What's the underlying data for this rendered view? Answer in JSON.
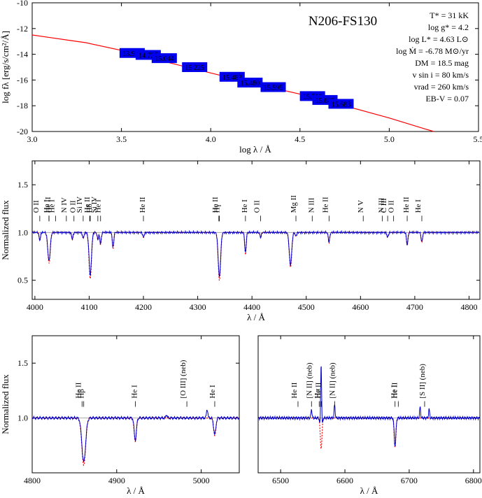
{
  "chart_data": [
    {
      "type": "scatter",
      "panel": "sed",
      "title": "N206-FS130",
      "xlabel": "log λ / Å",
      "ylabel": "log fλ [erg/s/cm²/Å]",
      "xlim": [
        3.0,
        5.5
      ],
      "ylim": [
        -20,
        -10
      ],
      "xticks": [
        "3.0",
        "3.5",
        "4.0",
        "4.5",
        "5.0",
        "5.5"
      ],
      "yticks": [
        "-20",
        "-18",
        "-16",
        "-14",
        "-12",
        "-10"
      ],
      "model_color": "#ff0000",
      "box_color": "#0000ee",
      "model_points": [
        [
          3.0,
          -12.5
        ],
        [
          3.1,
          -12.7
        ],
        [
          3.2,
          -12.9
        ],
        [
          3.3,
          -13.1
        ],
        [
          3.5,
          -13.7
        ],
        [
          3.75,
          -14.6
        ],
        [
          4.0,
          -15.45
        ],
        [
          4.25,
          -16.3
        ],
        [
          4.5,
          -17.1
        ],
        [
          4.75,
          -18.0
        ],
        [
          5.0,
          -18.95
        ],
        [
          5.2,
          -19.8
        ],
        [
          5.25,
          -20.0
        ]
      ],
      "photometry": [
        {
          "label": "13.920",
          "logl": 3.56,
          "logf": -13.9
        },
        {
          "label": "14.727",
          "logl": 3.65,
          "logf": -14.05
        },
        {
          "label": "15.044",
          "logl": 3.74,
          "logf": -14.3
        },
        {
          "label": "15.225",
          "logl": 3.91,
          "logf": -15.0
        },
        {
          "label": "15.483",
          "logl": 4.12,
          "logf": -15.75
        },
        {
          "label": "15.480",
          "logl": 4.22,
          "logf": -16.2
        },
        {
          "label": "15.595",
          "logl": 4.35,
          "logf": -16.55
        },
        {
          "label": "15.710",
          "logl": 4.57,
          "logf": -17.25
        },
        {
          "label": "15.682",
          "logl": 4.64,
          "logf": -17.55
        },
        {
          "label": "15.683",
          "logl": 4.73,
          "logf": -17.85
        }
      ],
      "parameters": [
        "T* = 31 kK",
        "log g* = 4.2",
        "log L* = 4.63 L⊙",
        "log Ṁ = -6.78 M⊙/yr",
        "DM = 18.5 mag",
        "v sin i = 80 km/s",
        "vrad = 260 km/s",
        "EB-V = 0.07"
      ]
    },
    {
      "type": "line",
      "panel": "blue",
      "xlabel": "λ / Å",
      "ylabel": "Normalized flux",
      "xlim": [
        3995,
        4820
      ],
      "ylim": [
        0.3,
        1.75
      ],
      "xticks": [
        "4000",
        "4100",
        "4200",
        "4300",
        "4400",
        "4500",
        "4600",
        "4700",
        "4800"
      ],
      "yticks": [
        "0.5",
        "1.0",
        "1.5"
      ],
      "observed_color": "#0000cc",
      "model_color": "#ff0000",
      "absorption": [
        [
          4009,
          0.92
        ],
        [
          4026,
          0.7
        ],
        [
          4069,
          0.93
        ],
        [
          4089,
          0.94
        ],
        [
          4102,
          0.55
        ],
        [
          4116,
          0.93
        ],
        [
          4121,
          0.88
        ],
        [
          4144,
          0.84
        ],
        [
          4200,
          0.95
        ],
        [
          4340,
          0.53
        ],
        [
          4388,
          0.78
        ],
        [
          4416,
          0.95
        ],
        [
          4471,
          0.66
        ],
        [
          4481,
          0.96
        ],
        [
          4542,
          0.9
        ],
        [
          4650,
          0.95
        ],
        [
          4686,
          0.87
        ],
        [
          4713,
          0.9
        ]
      ],
      "line_ids": [
        {
          "text": "O II",
          "at": 4009
        },
        {
          "text": "He I",
          "at": 4026
        },
        {
          "text": "He II",
          "at": 4026
        },
        {
          "text": "He I",
          "at": 4038
        },
        {
          "text": "N IV",
          "at": 4058
        },
        {
          "text": "O II",
          "at": 4072
        },
        {
          "text": "Si IV",
          "at": 4089
        },
        {
          "text": "He II",
          "at": 4101
        },
        {
          "text": "Hδ",
          "at": 4102
        },
        {
          "text": "Si IV",
          "at": 4116
        },
        {
          "text": "He I",
          "at": 4121
        },
        {
          "text": "He II",
          "at": 4200
        },
        {
          "text": "He II",
          "at": 4339
        },
        {
          "text": "Hγ",
          "at": 4340
        },
        {
          "text": "He I",
          "at": 4388
        },
        {
          "text": "O II",
          "at": 4416
        },
        {
          "text": "Mg II",
          "at": 4481
        },
        {
          "text": "N III",
          "at": 4511
        },
        {
          "text": "He II",
          "at": 4542
        },
        {
          "text": "N V",
          "at": 4605
        },
        {
          "text": "N III",
          "at": 4640
        },
        {
          "text": "C III",
          "at": 4650
        },
        {
          "text": "O II",
          "at": 4661
        },
        {
          "text": "He II",
          "at": 4686
        },
        {
          "text": "He I",
          "at": 4713
        }
      ]
    },
    {
      "type": "line",
      "panel": "hbeta",
      "xlabel": "λ / Å",
      "ylabel": "Normalized flux",
      "xlim": [
        4800,
        5045
      ],
      "ylim": [
        0.5,
        1.75
      ],
      "xticks": [
        "4800",
        "4900",
        "5000"
      ],
      "yticks": [
        "1.0",
        "1.5"
      ],
      "absorption": [
        [
          4861,
          0.6
        ],
        [
          4922,
          0.8
        ],
        [
          5016,
          0.85
        ]
      ],
      "emission": [
        [
          4959,
          1.03
        ],
        [
          5007,
          1.08
        ]
      ],
      "line_ids": [
        {
          "text": "He II",
          "at": 4859
        },
        {
          "text": "Hβ",
          "at": 4861
        },
        {
          "text": "He I",
          "at": 4922
        },
        {
          "text": "[O III] (neb)",
          "at": 4983
        },
        {
          "text": "He I",
          "at": 5016
        }
      ]
    },
    {
      "type": "line",
      "panel": "halpha",
      "xlabel": "λ / Å",
      "xlim": [
        6465,
        6810
      ],
      "ylim": [
        0.5,
        1.75
      ],
      "xticks": [
        "6500",
        "6600",
        "6700",
        "6800"
      ],
      "absorption": [
        [
          6563,
          0.74
        ],
        [
          6678,
          0.75
        ]
      ],
      "emission": [
        [
          6548,
          1.08
        ],
        [
          6563,
          1.75
        ],
        [
          6584,
          1.12
        ],
        [
          6717,
          1.1
        ],
        [
          6731,
          1.08
        ]
      ],
      "line_ids": [
        {
          "text": "He II",
          "at": 6527
        },
        {
          "text": "[N II] (neb)",
          "at": 6548
        },
        {
          "text": "He II",
          "at": 6560
        },
        {
          "text": "Hα",
          "at": 6563
        },
        {
          "text": "[N II] (neb)",
          "at": 6584
        },
        {
          "text": "He I",
          "at": 6678
        },
        {
          "text": "He II",
          "at": 6683
        },
        {
          "text": "[S II] (neb)",
          "at": 6724
        }
      ]
    }
  ]
}
